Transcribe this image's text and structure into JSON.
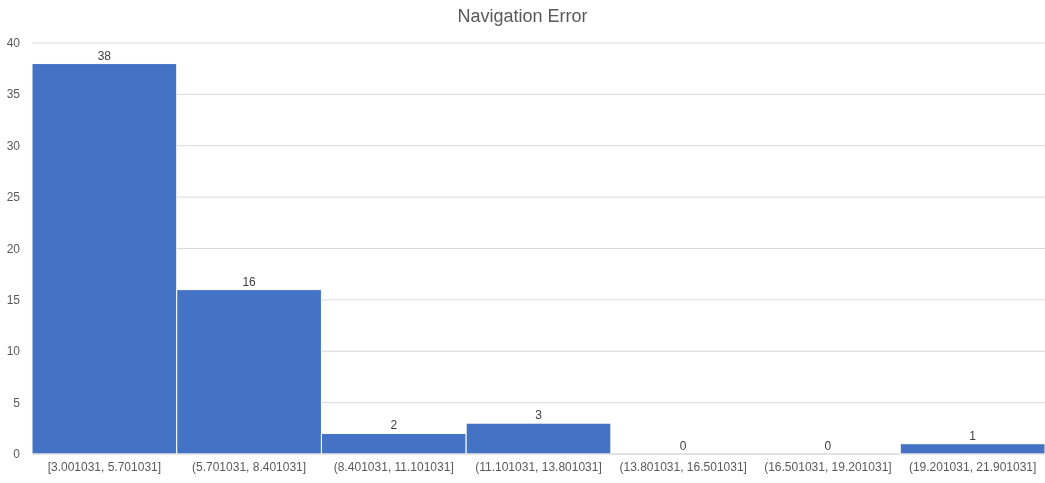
{
  "chart_data": {
    "type": "bar",
    "title": "Navigation Error",
    "categories": [
      "[3.001031, 5.701031]",
      "(5.701031, 8.401031]",
      "(8.401031, 11.101031]",
      "(11.101031, 13.801031]",
      "(13.801031, 16.501031]",
      "(16.501031, 19.201031]",
      "(19.201031, 21.901031]"
    ],
    "values": [
      38,
      16,
      2,
      3,
      0,
      0,
      1
    ],
    "color": "#4472c4",
    "ylim": [
      0,
      40
    ],
    "yticks": [
      0,
      5,
      10,
      15,
      20,
      25,
      30,
      35,
      40
    ],
    "grid": "y",
    "data_labels": true
  }
}
